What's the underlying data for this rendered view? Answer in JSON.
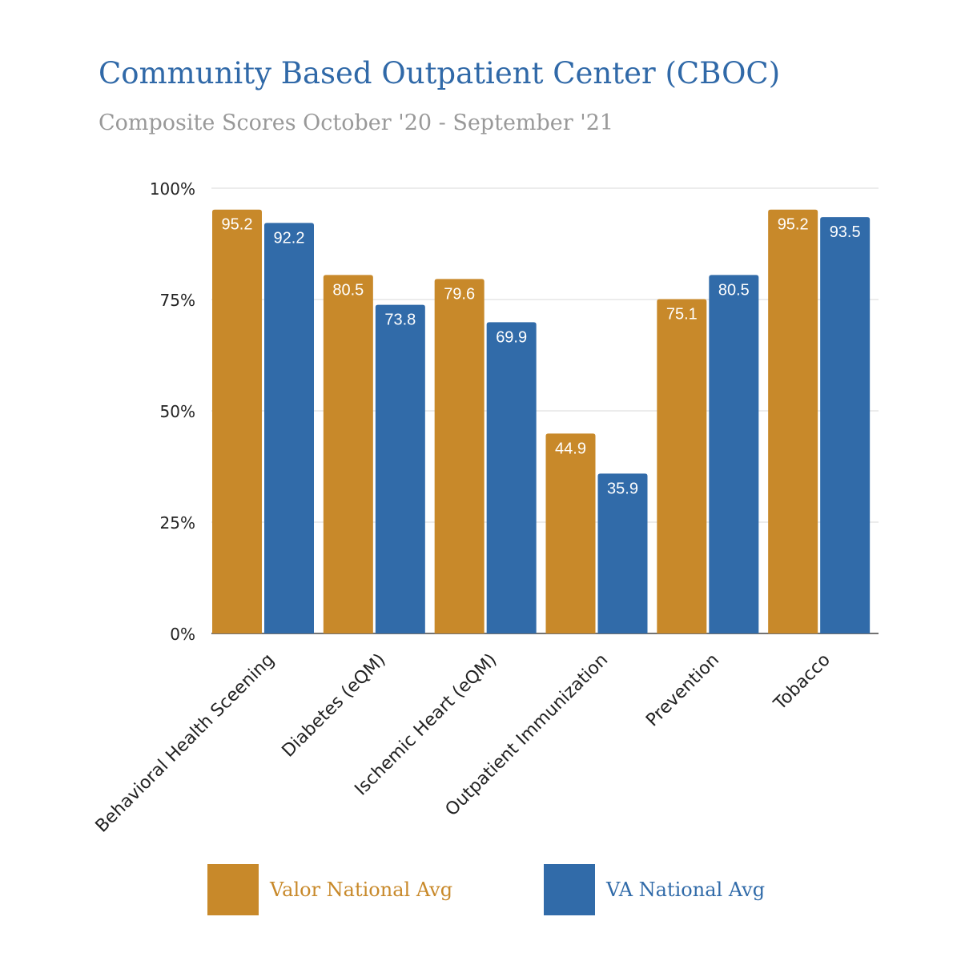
{
  "chart_data": {
    "type": "bar",
    "title": "Community Based Outpatient Center (CBOC)",
    "subtitle": "Composite Scores October '20 - September '21",
    "categories": [
      "Behavioral Health Sceening",
      "Diabetes (eQM)",
      "Ischemic Heart (eQM)",
      "Outpatient Immunization",
      "Prevention",
      "Tobacco"
    ],
    "series": [
      {
        "name": "Valor National Avg",
        "color": "#c8892a",
        "values": [
          95.2,
          80.5,
          79.6,
          44.9,
          75.1,
          95.2
        ]
      },
      {
        "name": "VA National Avg",
        "color": "#316ba9",
        "values": [
          92.2,
          73.8,
          69.9,
          35.9,
          80.5,
          93.5
        ]
      }
    ],
    "y_ticks": [
      0,
      25,
      50,
      75,
      100
    ],
    "y_tick_labels": [
      "0%",
      "25%",
      "50%",
      "75%",
      "100%"
    ],
    "ylim": [
      0,
      100
    ],
    "grid": true,
    "legend_position": "bottom",
    "xlabel": "",
    "ylabel": ""
  }
}
